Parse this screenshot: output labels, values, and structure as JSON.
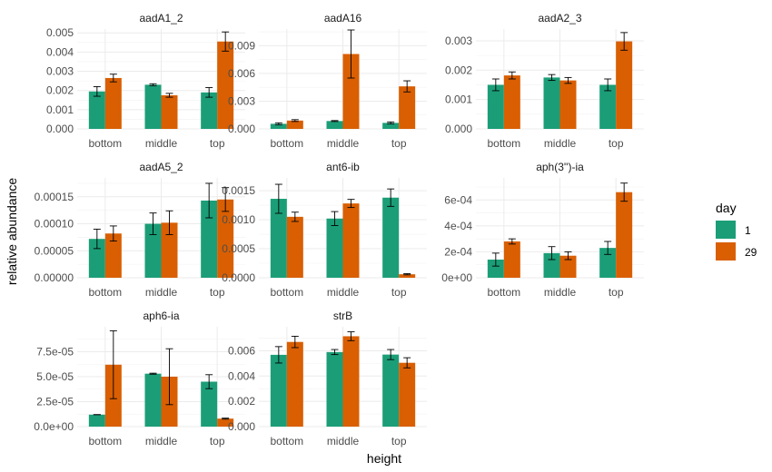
{
  "chart_data": {
    "type": "bar",
    "xlabel": "height",
    "ylabel": "relative abundance",
    "grid": true,
    "legend": {
      "title": "day",
      "position": "right",
      "entries": [
        {
          "label": "1",
          "color": "#1b9e77"
        },
        {
          "label": "29",
          "color": "#d95f02"
        }
      ]
    },
    "categories": [
      "bottom",
      "middle",
      "top"
    ],
    "panels": [
      {
        "title": "aadA1_2",
        "ylim": [
          0,
          0.0052
        ],
        "yticks": [
          0,
          0.001,
          0.002,
          0.003,
          0.004,
          0.005
        ],
        "ytick_labels": [
          "0.000",
          "0.001",
          "0.002",
          "0.003",
          "0.004",
          "0.005"
        ],
        "series": [
          {
            "name": "1",
            "values": [
              0.00195,
              0.0023,
              0.0019
            ],
            "errors": [
              0.00025,
              5e-05,
              0.00025
            ]
          },
          {
            "name": "29",
            "values": [
              0.00265,
              0.00175,
              0.00455
            ],
            "errors": [
              0.0002,
              0.0001,
              0.0005
            ]
          }
        ]
      },
      {
        "title": "aadA16",
        "ylim": [
          0,
          0.0108
        ],
        "yticks": [
          0,
          0.003,
          0.006,
          0.009
        ],
        "ytick_labels": [
          "0.000",
          "0.003",
          "0.006",
          "0.009"
        ],
        "series": [
          {
            "name": "1",
            "values": [
              0.00055,
              0.00085,
              0.00065
            ],
            "errors": [
              0.0001,
              5e-05,
              0.0001
            ]
          },
          {
            "name": "29",
            "values": [
              0.0009,
              0.0081,
              0.0046
            ],
            "errors": [
              0.0001,
              0.0026,
              0.0006
            ]
          }
        ]
      },
      {
        "title": "aadA2_3",
        "ylim": [
          0,
          0.0034
        ],
        "yticks": [
          0,
          0.001,
          0.002,
          0.003
        ],
        "ytick_labels": [
          "0.000",
          "0.001",
          "0.002",
          "0.003"
        ],
        "series": [
          {
            "name": "1",
            "values": [
              0.0015,
              0.00175,
              0.0015
            ],
            "errors": [
              0.0002,
              0.0001,
              0.0002
            ]
          },
          {
            "name": "29",
            "values": [
              0.00182,
              0.00165,
              0.00298
            ],
            "errors": [
              0.00012,
              0.0001,
              0.0003
            ]
          }
        ]
      },
      {
        "title": "aadA5_2",
        "ylim": [
          0,
          0.000185
        ],
        "yticks": [
          0,
          5e-05,
          0.0001,
          0.00015
        ],
        "ytick_labels": [
          "0.00000",
          "0.00005",
          "0.00010",
          "0.00015"
        ],
        "series": [
          {
            "name": "1",
            "values": [
              7.2e-05,
              0.0001,
              0.000143
            ],
            "errors": [
              1.8e-05,
              2e-05,
              3.2e-05
            ]
          },
          {
            "name": "29",
            "values": [
              8.2e-05,
              0.000102,
              0.000145
            ],
            "errors": [
              1.4e-05,
              2.2e-05,
              2.2e-05
            ]
          }
        ]
      },
      {
        "title": "ant6-ib",
        "ylim": [
          0,
          0.00172
        ],
        "yticks": [
          0,
          0.0005,
          0.001,
          0.0015
        ],
        "ytick_labels": [
          "0.0000",
          "0.0005",
          "0.0010",
          "0.0015"
        ],
        "series": [
          {
            "name": "1",
            "values": [
              0.00136,
              0.00102,
              0.00138
            ],
            "errors": [
              0.00025,
              0.00012,
              0.00015
            ]
          },
          {
            "name": "29",
            "values": [
              0.00105,
              0.00128,
              6e-05
            ],
            "errors": [
              8e-05,
              7e-05,
              1e-05
            ]
          }
        ]
      },
      {
        "title": "aph(3'')-ia",
        "ylim": [
          0,
          0.00077
        ],
        "yticks": [
          0,
          0.0002,
          0.0004,
          0.0006
        ],
        "ytick_labels": [
          "0e+00",
          "2e-04",
          "4e-04",
          "6e-04"
        ],
        "series": [
          {
            "name": "1",
            "values": [
              0.00014,
              0.00019,
              0.00023
            ],
            "errors": [
              5e-05,
              5e-05,
              5e-05
            ]
          },
          {
            "name": "29",
            "values": [
              0.00028,
              0.00017,
              0.00066
            ],
            "errors": [
              2e-05,
              3e-05,
              7e-05
            ]
          }
        ]
      },
      {
        "title": "aph6-ia",
        "ylim": [
          0,
          0.0001
        ],
        "yticks": [
          0,
          2.5e-05,
          5e-05,
          7.5e-05
        ],
        "ytick_labels": [
          "0.0e+00",
          "2.5e-05",
          "5.0e-05",
          "7.5e-05"
        ],
        "series": [
          {
            "name": "1",
            "values": [
              1.2e-05,
              5.3e-05,
              4.5e-05
            ],
            "errors": [
              0,
              5e-07,
              7e-06
            ]
          },
          {
            "name": "29",
            "values": [
              6.2e-05,
              5e-05,
              8e-06
            ],
            "errors": [
              3.4e-05,
              2.8e-05,
              5e-07
            ]
          }
        ]
      },
      {
        "title": "strB",
        "ylim": [
          0,
          0.0079
        ],
        "yticks": [
          0,
          0.002,
          0.004,
          0.006
        ],
        "ytick_labels": [
          "0.000",
          "0.002",
          "0.004",
          "0.006"
        ],
        "series": [
          {
            "name": "1",
            "values": [
              0.00568,
              0.0059,
              0.0057
            ],
            "errors": [
              0.00065,
              0.0002,
              0.0004
            ]
          },
          {
            "name": "29",
            "values": [
              0.0067,
              0.00715,
              0.00505
            ],
            "errors": [
              0.00045,
              0.00035,
              0.0004
            ]
          }
        ]
      }
    ]
  }
}
